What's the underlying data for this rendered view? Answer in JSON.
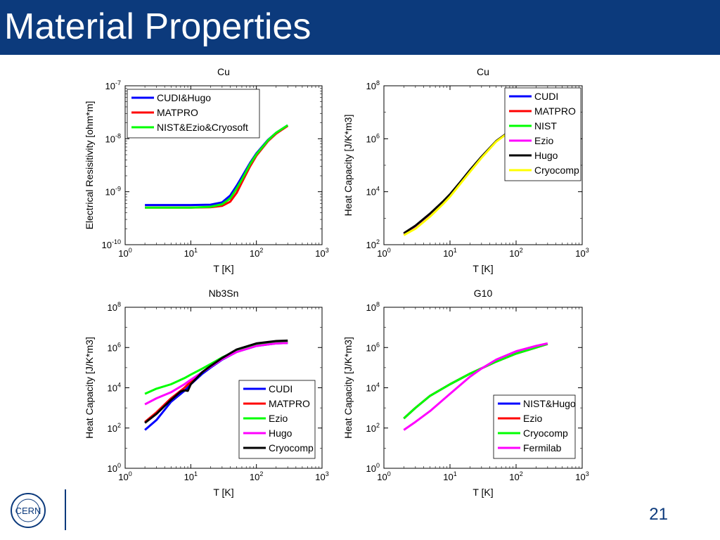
{
  "slide": {
    "title": "Material Properties",
    "page_number": "21",
    "logo_text": "CERN",
    "colors": {
      "title_bar": "#0c3a7c",
      "title_text": "#ffffff"
    }
  },
  "chart_data": [
    {
      "type": "line",
      "title": "Cu",
      "xlabel": "T [K]",
      "ylabel": "Electrical Resisitivity [ohm*m]",
      "xscale": "log",
      "yscale": "log",
      "xlim": [
        1,
        1000
      ],
      "ylim": [
        1e-10,
        1e-07
      ],
      "xticks": [
        {
          "base": "10",
          "exp": "0"
        },
        {
          "base": "10",
          "exp": "1"
        },
        {
          "base": "10",
          "exp": "2"
        },
        {
          "base": "10",
          "exp": "3"
        }
      ],
      "yticks": [
        {
          "base": "10",
          "exp": "-10"
        },
        {
          "base": "10",
          "exp": "-9"
        },
        {
          "base": "10",
          "exp": "-8"
        },
        {
          "base": "10",
          "exp": "-7"
        }
      ],
      "legend_position": "top-left",
      "series": [
        {
          "name": "CUDI&Hugo",
          "color": "#0000ff",
          "x": [
            2,
            5,
            10,
            20,
            30,
            40,
            50,
            60,
            80,
            100,
            150,
            200,
            300
          ],
          "y": [
            5.6e-10,
            5.6e-10,
            5.6e-10,
            5.7e-10,
            6.3e-10,
            8.5e-10,
            1.3e-09,
            1.9e-09,
            3.5e-09,
            5.3e-09,
            9.5e-09,
            1.3e-08,
            1.8e-08
          ]
        },
        {
          "name": "MATPRO",
          "color": "#ff0000",
          "x": [
            2,
            5,
            10,
            20,
            30,
            40,
            50,
            60,
            80,
            100,
            150,
            200,
            300
          ],
          "y": [
            5e-10,
            5e-10,
            5e-10,
            5.1e-10,
            5.4e-10,
            6.5e-10,
            9.5e-10,
            1.5e-09,
            3e-09,
            4.8e-09,
            9e-09,
            1.25e-08,
            1.75e-08
          ]
        },
        {
          "name": "NIST&Ezio&Cryosoft",
          "color": "#00ff00",
          "x": [
            2,
            5,
            10,
            20,
            30,
            40,
            50,
            60,
            80,
            100,
            150,
            200,
            300
          ],
          "y": [
            5e-10,
            5e-10,
            5e-10,
            5.2e-10,
            5.8e-10,
            7.5e-10,
            1.15e-09,
            1.7e-09,
            3.3e-09,
            5.1e-09,
            9.3e-09,
            1.3e-08,
            1.8e-08
          ]
        }
      ]
    },
    {
      "type": "line",
      "title": "Cu",
      "xlabel": "T [K]",
      "ylabel": "Heat Capacity [J/K*m3]",
      "xscale": "log",
      "yscale": "log",
      "xlim": [
        1,
        1000
      ],
      "ylim": [
        100,
        100000000.0
      ],
      "xticks": [
        {
          "base": "10",
          "exp": "0"
        },
        {
          "base": "10",
          "exp": "1"
        },
        {
          "base": "10",
          "exp": "2"
        },
        {
          "base": "10",
          "exp": "3"
        }
      ],
      "yticks": [
        {
          "base": "10",
          "exp": "2"
        },
        {
          "base": "10",
          "exp": "4"
        },
        {
          "base": "10",
          "exp": "6"
        },
        {
          "base": "10",
          "exp": "8"
        }
      ],
      "legend_position": "top-right",
      "series": [
        {
          "name": "CUDI",
          "color": "#0000ff",
          "x": [
            2,
            3,
            5,
            8,
            10,
            15,
            20,
            30,
            50,
            70
          ],
          "y": [
            250,
            450,
            1300,
            4000,
            7000,
            25000,
            60000,
            200000,
            800000,
            1500000
          ]
        },
        {
          "name": "MATPRO",
          "color": "#ff0000",
          "x": [
            2,
            3,
            5,
            8,
            10,
            15,
            20,
            30,
            50,
            70
          ],
          "y": [
            250,
            450,
            1300,
            4000,
            7000,
            25000,
            60000,
            200000,
            800000,
            1500000
          ]
        },
        {
          "name": "NIST",
          "color": "#00ff00",
          "x": [
            2,
            3,
            5,
            8,
            10,
            15,
            20,
            30,
            50,
            70
          ],
          "y": [
            250,
            450,
            1300,
            4000,
            7000,
            25000,
            60000,
            200000,
            800000,
            1500000
          ]
        },
        {
          "name": "Ezio",
          "color": "#ff00ff",
          "x": [
            2,
            3,
            5,
            8,
            10,
            15,
            20,
            30,
            50,
            70
          ],
          "y": [
            250,
            450,
            1300,
            4000,
            7000,
            25000,
            60000,
            200000,
            800000,
            1500000
          ]
        },
        {
          "name": "Hugo",
          "color": "#000000",
          "x": [
            2,
            3,
            5,
            8,
            10,
            15,
            20,
            30,
            50,
            70
          ],
          "y": [
            270,
            520,
            1500,
            4500,
            8000,
            27000,
            65000,
            210000,
            820000,
            1500000
          ]
        },
        {
          "name": "Cryocomp",
          "color": "#ffff00",
          "x": [
            2,
            3,
            5,
            8,
            10,
            15,
            20,
            30,
            50,
            70
          ],
          "y": [
            230,
            400,
            1150,
            3600,
            6500,
            23000,
            56000,
            190000,
            780000,
            1450000
          ]
        }
      ]
    },
    {
      "type": "line",
      "title": "Nb3Sn",
      "xlabel": "T [K]",
      "ylabel": "Heat Capacity [J/K*m3]",
      "xscale": "log",
      "yscale": "log",
      "xlim": [
        1,
        1000
      ],
      "ylim": [
        1,
        100000000.0
      ],
      "xticks": [
        {
          "base": "10",
          "exp": "0"
        },
        {
          "base": "10",
          "exp": "1"
        },
        {
          "base": "10",
          "exp": "2"
        },
        {
          "base": "10",
          "exp": "3"
        }
      ],
      "yticks": [
        {
          "base": "10",
          "exp": "0"
        },
        {
          "base": "10",
          "exp": "2"
        },
        {
          "base": "10",
          "exp": "4"
        },
        {
          "base": "10",
          "exp": "6"
        },
        {
          "base": "10",
          "exp": "8"
        }
      ],
      "legend_position": "bottom-right",
      "series": [
        {
          "name": "CUDI",
          "color": "#0000ff",
          "x": [
            2,
            3,
            5,
            8,
            10,
            15,
            20,
            30,
            50,
            100,
            200,
            300
          ],
          "y": [
            80,
            250,
            2000,
            7000,
            15000,
            50000,
            100000,
            250000,
            600000,
            1200000,
            1600000,
            1700000
          ]
        },
        {
          "name": "MATPRO",
          "color": "#ff0000",
          "x": [
            2,
            3,
            5,
            8,
            10,
            15,
            20,
            30,
            50,
            100,
            200,
            300
          ],
          "y": [
            200,
            600,
            3000,
            10000,
            20000,
            60000,
            120000,
            300000,
            700000,
            1400000,
            1800000,
            1900000
          ]
        },
        {
          "name": "Ezio",
          "color": "#00ff00",
          "x": [
            2,
            3,
            5,
            8,
            10,
            15,
            20,
            30,
            50,
            100,
            200,
            300
          ],
          "y": [
            5000,
            9000,
            15000,
            30000,
            45000,
            90000,
            150000,
            320000,
            700000,
            1400000,
            1900000,
            2000000
          ]
        },
        {
          "name": "Hugo",
          "color": "#ff00ff",
          "x": [
            2,
            3,
            5,
            8,
            10,
            15,
            20,
            30,
            50,
            100,
            200,
            300
          ],
          "y": [
            1500,
            3000,
            6000,
            15000,
            25000,
            60000,
            110000,
            260000,
            600000,
            1200000,
            1600000,
            1700000
          ]
        },
        {
          "name": "Cryocomp",
          "color": "#000000",
          "x": [
            2,
            3,
            5,
            7,
            8,
            9,
            10,
            15,
            20,
            30,
            50,
            100,
            200,
            300
          ],
          "y": [
            180,
            500,
            2500,
            6500,
            7500,
            7000,
            15000,
            60000,
            120000,
            300000,
            800000,
            1600000,
            2100000,
            2200000
          ]
        }
      ]
    },
    {
      "type": "line",
      "title": "G10",
      "xlabel": "T [K]",
      "ylabel": "Heat Capacity [J/K*m3]",
      "xscale": "log",
      "yscale": "log",
      "xlim": [
        1,
        1000
      ],
      "ylim": [
        1,
        100000000.0
      ],
      "xticks": [
        {
          "base": "10",
          "exp": "0"
        },
        {
          "base": "10",
          "exp": "1"
        },
        {
          "base": "10",
          "exp": "2"
        },
        {
          "base": "10",
          "exp": "3"
        }
      ],
      "yticks": [
        {
          "base": "10",
          "exp": "0"
        },
        {
          "base": "10",
          "exp": "2"
        },
        {
          "base": "10",
          "exp": "4"
        },
        {
          "base": "10",
          "exp": "6"
        },
        {
          "base": "10",
          "exp": "8"
        }
      ],
      "legend_position": "bottom-right",
      "series": [
        {
          "name": "NIST&Hugo",
          "color": "#0000ff",
          "x": [
            2,
            3,
            5,
            10,
            20,
            50,
            100,
            200,
            300
          ],
          "y": [
            300,
            1000,
            4000,
            15000,
            50000,
            200000,
            500000,
            1000000,
            1500000
          ]
        },
        {
          "name": "Ezio",
          "color": "#ff0000",
          "x": [
            2,
            3,
            5,
            10,
            20,
            50,
            100,
            200,
            300
          ],
          "y": [
            300,
            1000,
            4000,
            15000,
            50000,
            200000,
            500000,
            1000000,
            1500000
          ]
        },
        {
          "name": "Cryocomp",
          "color": "#00ff00",
          "x": [
            2,
            3,
            5,
            10,
            20,
            50,
            100,
            200,
            300
          ],
          "y": [
            300,
            1000,
            4000,
            15000,
            50000,
            200000,
            500000,
            1000000,
            1500000
          ]
        },
        {
          "name": "Fermilab",
          "color": "#ff00ff",
          "x": [
            2,
            3,
            5,
            10,
            20,
            30,
            50,
            100,
            200,
            300
          ],
          "y": [
            80,
            200,
            700,
            5000,
            35000,
            90000,
            250000,
            650000,
            1200000,
            1600000
          ]
        }
      ]
    }
  ]
}
